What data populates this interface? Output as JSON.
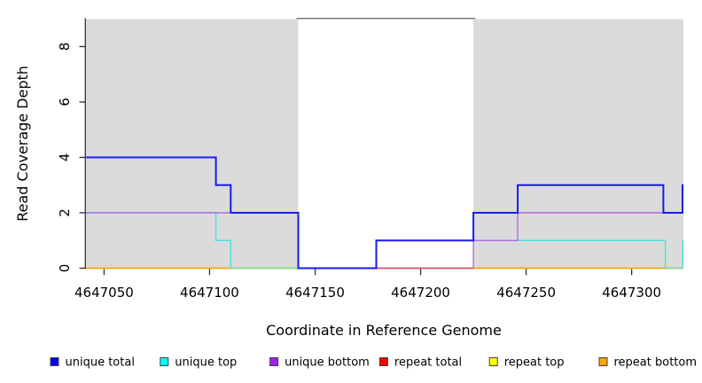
{
  "figure": {
    "background": "#FFFFFF",
    "axis_color": "#2F2F2F",
    "shade_color": "#DBDBDB",
    "gap_top_border_color": "#6E6E6E"
  },
  "chart_data": {
    "type": "line",
    "step": true,
    "title": "",
    "xlabel": "Coordinate in Reference Genome",
    "ylabel": "Read Coverage Depth",
    "xlim": [
      4647041.5,
      4647324.5
    ],
    "ylim": [
      0,
      9.02
    ],
    "x_ticks": [
      4647050,
      4647100,
      4647150,
      4647200,
      4647250,
      4647300
    ],
    "y_ticks": [
      0,
      2,
      4,
      6,
      8
    ],
    "grid": false,
    "legend_position": "bottom",
    "shaded_regions": [
      {
        "x1": 4647041.5,
        "x2": 4647142,
        "color": "#DBDBDB"
      },
      {
        "x1": 4647225,
        "x2": 4647324.5,
        "color": "#DBDBDB"
      }
    ],
    "series": [
      {
        "name": "repeat total",
        "legend_color": "#FF0000",
        "line_color": "#E03030",
        "width": 1.2,
        "points": [
          [
            4647041.5,
            0
          ]
        ],
        "end": 4647324.5
      },
      {
        "name": "repeat top",
        "legend_color": "#FFFF00",
        "line_color": "#F0E020",
        "width": 1.2,
        "points": [
          [
            4647041.5,
            0
          ]
        ],
        "end": 4647324.5
      },
      {
        "name": "repeat bottom",
        "legend_color": "#FFA500",
        "line_color": "#FFA500",
        "width": 1.6,
        "points": [
          [
            4647041.5,
            0
          ]
        ],
        "end": 4647324.5
      },
      {
        "name": "unique top",
        "legend_color": "#00FFFF",
        "line_color": "#45E1DB",
        "width": 1.4,
        "points": [
          [
            4647041.5,
            2
          ],
          [
            4647103,
            1
          ],
          [
            4647110,
            0
          ],
          [
            4647179,
            1
          ],
          [
            4647316,
            0
          ],
          [
            4647324.2,
            1
          ]
        ],
        "end": 4647324.5
      },
      {
        "name": "unique bottom",
        "legend_color": "#A020F0",
        "line_color": "#B06BE3",
        "width": 1.4,
        "points": [
          [
            4647041.5,
            2
          ],
          [
            4647142,
            0
          ],
          [
            4647225,
            1
          ],
          [
            4647246,
            2
          ]
        ],
        "end": 4647324.5
      },
      {
        "name": "unique total",
        "legend_color": "#0000FF",
        "line_color": "#1A1AEF",
        "width": 2.0,
        "points": [
          [
            4647041.5,
            4
          ],
          [
            4647103,
            3
          ],
          [
            4647110,
            2
          ],
          [
            4647142,
            0
          ],
          [
            4647179,
            1
          ],
          [
            4647225,
            2
          ],
          [
            4647246,
            3
          ],
          [
            4647315,
            2
          ],
          [
            4647324.1,
            3
          ]
        ],
        "end": 4647324.5
      }
    ],
    "blend_segments": [
      {
        "x1": 4647109,
        "x2": 4647142,
        "depth": 0,
        "color": "#8FD98F"
      },
      {
        "x1": 4647316,
        "x2": 4647324.5,
        "depth": 0,
        "color": "#8FD98F"
      },
      {
        "x1": 4647179,
        "x2": 4647225,
        "depth": 0,
        "color": "#D8546E"
      }
    ],
    "legend": [
      {
        "label": "unique total",
        "color": "#0000FF"
      },
      {
        "label": "unique top",
        "color": "#00FFFF"
      },
      {
        "label": "unique bottom",
        "color": "#A020F0"
      },
      {
        "label": "repeat total",
        "color": "#FF0000"
      },
      {
        "label": "repeat top",
        "color": "#FFFF00"
      },
      {
        "label": "repeat bottom",
        "color": "#FFA500"
      }
    ]
  }
}
